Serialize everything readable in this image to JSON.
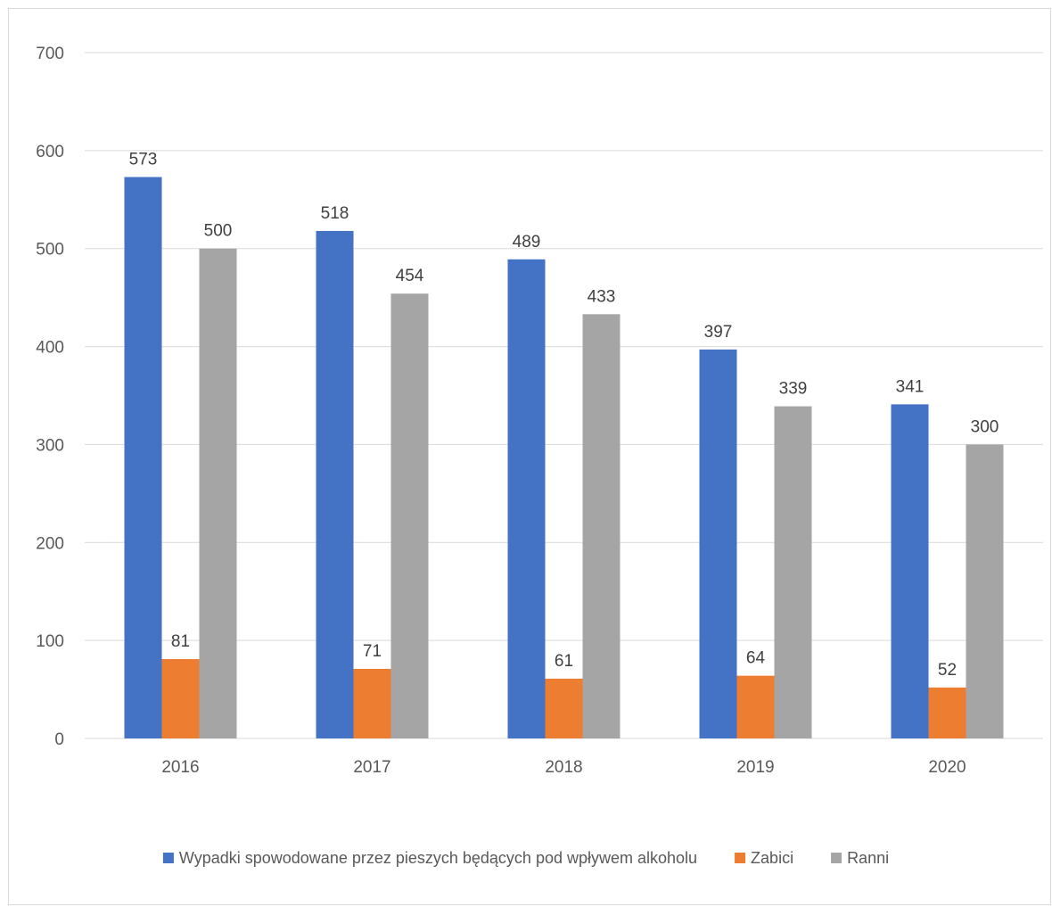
{
  "chart_data": {
    "type": "bar",
    "categories": [
      "2016",
      "2017",
      "2018",
      "2019",
      "2020"
    ],
    "series": [
      {
        "name": "Wypadki spowodowane przez pieszych będących pod wpływem alkoholu",
        "color": "#4472c4",
        "values": [
          573,
          518,
          489,
          397,
          341
        ]
      },
      {
        "name": "Zabici",
        "color": "#ed7d31",
        "values": [
          81,
          71,
          61,
          64,
          52
        ]
      },
      {
        "name": "Ranni",
        "color": "#a5a5a5",
        "values": [
          500,
          454,
          433,
          339,
          300
        ]
      }
    ],
    "ylim": [
      0,
      700
    ],
    "yticks": [
      0,
      100,
      200,
      300,
      400,
      500,
      600,
      700
    ],
    "grid": true,
    "legend": "bottom",
    "data_labels": true,
    "gridline_color": "#d9d9d9"
  }
}
